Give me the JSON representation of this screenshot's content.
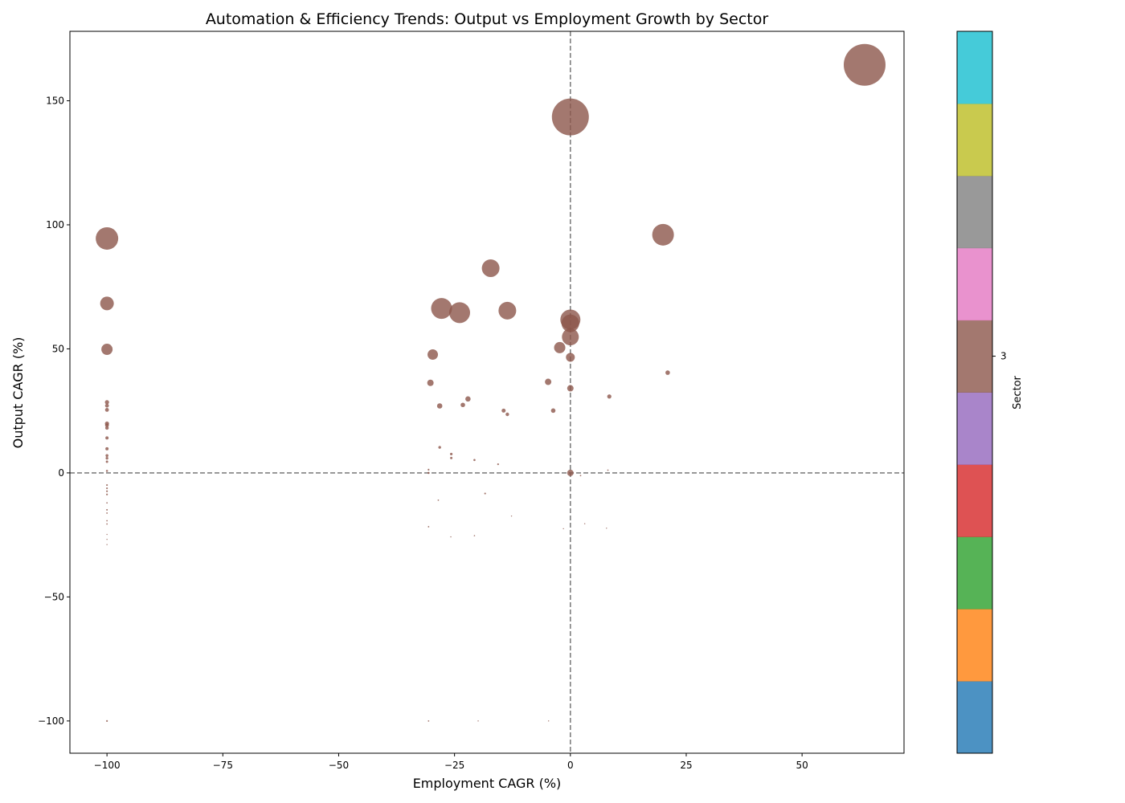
{
  "chart_data": {
    "type": "scatter",
    "title": "Automation & Efficiency Trends: Output vs Employment Growth by Sector",
    "xlabel": "Employment CAGR (%)",
    "ylabel": "Output CAGR (%)",
    "xlim": [
      -108,
      72
    ],
    "ylim": [
      -113,
      178
    ],
    "xticks": [
      -100,
      -75,
      -50,
      -25,
      0,
      25,
      50
    ],
    "yticks": [
      -100,
      -50,
      0,
      50,
      100,
      150
    ],
    "xtick_labels": [
      "−100",
      "−75",
      "−50",
      "−25",
      "0",
      "25",
      "50"
    ],
    "ytick_labels": [
      "−100",
      "−50",
      "0",
      "50",
      "100",
      "150"
    ],
    "reference_lines": {
      "x": 0,
      "y": 0,
      "style": "dashed",
      "color": "#808080"
    },
    "grid": false,
    "point_color": "#8c564b",
    "point_alpha": 0.8,
    "colorbar": {
      "label": "Sector",
      "tick_label": "3",
      "tick_index": 5,
      "colors": [
        "#1f77b4",
        "#ff7f0e",
        "#2ca02c",
        "#d62728",
        "#9467bd",
        "#8c564b",
        "#e377c2",
        "#7f7f7f",
        "#bcbd22",
        "#17becf"
      ]
    },
    "points": [
      {
        "x": 63.5,
        "y": 164.5,
        "r": 26
      },
      {
        "x": 0,
        "y": 143.5,
        "r": 23
      },
      {
        "x": -100,
        "y": 94.5,
        "r": 14
      },
      {
        "x": 20,
        "y": 96,
        "r": 13.5
      },
      {
        "x": -17.2,
        "y": 82.5,
        "r": 11
      },
      {
        "x": -27.8,
        "y": 66.3,
        "r": 13
      },
      {
        "x": -23.9,
        "y": 64.6,
        "r": 13
      },
      {
        "x": -13.6,
        "y": 65.4,
        "r": 11
      },
      {
        "x": 0,
        "y": 61.8,
        "r": 12.5
      },
      {
        "x": 0,
        "y": 60.3,
        "r": 11
      },
      {
        "x": 0,
        "y": 54.8,
        "r": 10.5
      },
      {
        "x": -100,
        "y": 68.3,
        "r": 8.5
      },
      {
        "x": -100,
        "y": 49.8,
        "r": 7
      },
      {
        "x": -29.7,
        "y": 47.7,
        "r": 6.5
      },
      {
        "x": -2.3,
        "y": 50.5,
        "r": 7
      },
      {
        "x": 0,
        "y": 46.6,
        "r": 5.5
      },
      {
        "x": -30.2,
        "y": 36.3,
        "r": 4
      },
      {
        "x": -4.8,
        "y": 36.7,
        "r": 4
      },
      {
        "x": 0,
        "y": 34.1,
        "r": 4
      },
      {
        "x": 21,
        "y": 40.4,
        "r": 2.8
      },
      {
        "x": -28.2,
        "y": 27,
        "r": 3.3
      },
      {
        "x": -22.1,
        "y": 29.8,
        "r": 3.3
      },
      {
        "x": -23.2,
        "y": 27.4,
        "r": 2.8
      },
      {
        "x": -14.4,
        "y": 25.1,
        "r": 2.5
      },
      {
        "x": -13.6,
        "y": 23.6,
        "r": 2.2
      },
      {
        "x": -3.7,
        "y": 25.1,
        "r": 2.8
      },
      {
        "x": 8.4,
        "y": 30.8,
        "r": 2.6
      },
      {
        "x": -100,
        "y": 28.5,
        "r": 2.6
      },
      {
        "x": -100,
        "y": 27.1,
        "r": 2.4
      },
      {
        "x": -100,
        "y": 25.4,
        "r": 2.4
      },
      {
        "x": -100,
        "y": 19.9,
        "r": 2.6
      },
      {
        "x": -100,
        "y": 19.2,
        "r": 2.4
      },
      {
        "x": -100,
        "y": 18.1,
        "r": 2.2
      },
      {
        "x": -100,
        "y": 14.1,
        "r": 2
      },
      {
        "x": -100,
        "y": 9.7,
        "r": 2
      },
      {
        "x": -100,
        "y": 7,
        "r": 1.8
      },
      {
        "x": -100,
        "y": 5.9,
        "r": 1.7
      },
      {
        "x": -100,
        "y": 4.5,
        "r": 1.5
      },
      {
        "x": -100,
        "y": 0.8,
        "r": 1.3
      },
      {
        "x": -100,
        "y": -4.9,
        "r": 1.1
      },
      {
        "x": -100,
        "y": -6.2,
        "r": 1.1
      },
      {
        "x": -100,
        "y": -7.4,
        "r": 1.1
      },
      {
        "x": -100,
        "y": -8.7,
        "r": 1.1
      },
      {
        "x": -100,
        "y": -12.1,
        "r": 0.9
      },
      {
        "x": -100,
        "y": -14.9,
        "r": 1
      },
      {
        "x": -100,
        "y": -16.2,
        "r": 0.9
      },
      {
        "x": -100,
        "y": -19.3,
        "r": 0.9
      },
      {
        "x": -100,
        "y": -20.6,
        "r": 0.9
      },
      {
        "x": -100,
        "y": -24.8,
        "r": 0.7
      },
      {
        "x": -100,
        "y": -26.8,
        "r": 0.7
      },
      {
        "x": -100,
        "y": -28.9,
        "r": 0.7
      },
      {
        "x": -100,
        "y": -100,
        "r": 1.1
      },
      {
        "x": -28.2,
        "y": 10.3,
        "r": 1.7
      },
      {
        "x": -25.7,
        "y": 7.6,
        "r": 1.6
      },
      {
        "x": -25.7,
        "y": 6,
        "r": 1.5
      },
      {
        "x": -20.7,
        "y": 5.2,
        "r": 1.3
      },
      {
        "x": -15.6,
        "y": 3.5,
        "r": 1.1
      },
      {
        "x": -30.6,
        "y": 1.3,
        "r": 1.1
      },
      {
        "x": -30.6,
        "y": 0,
        "r": 1.3
      },
      {
        "x": 0,
        "y": 0,
        "r": 4
      },
      {
        "x": 2.2,
        "y": -1.1,
        "r": 0.9
      },
      {
        "x": 8.1,
        "y": 1.1,
        "r": 0.9
      },
      {
        "x": -18.4,
        "y": -8.3,
        "r": 1.1
      },
      {
        "x": -28.5,
        "y": -11,
        "r": 0.9
      },
      {
        "x": -12.7,
        "y": -17.4,
        "r": 0.7
      },
      {
        "x": -30.6,
        "y": -21.7,
        "r": 0.9
      },
      {
        "x": -25.8,
        "y": -25.8,
        "r": 0.7
      },
      {
        "x": -20.7,
        "y": -25.3,
        "r": 0.8
      },
      {
        "x": -1.5,
        "y": -22.5,
        "r": 0.7
      },
      {
        "x": 3.1,
        "y": -20.5,
        "r": 0.7
      },
      {
        "x": 7.8,
        "y": -22.3,
        "r": 0.7
      },
      {
        "x": -30.6,
        "y": -100,
        "r": 0.9
      },
      {
        "x": -19.9,
        "y": -100,
        "r": 0.7
      },
      {
        "x": -4.7,
        "y": -100,
        "r": 0.7
      }
    ]
  }
}
